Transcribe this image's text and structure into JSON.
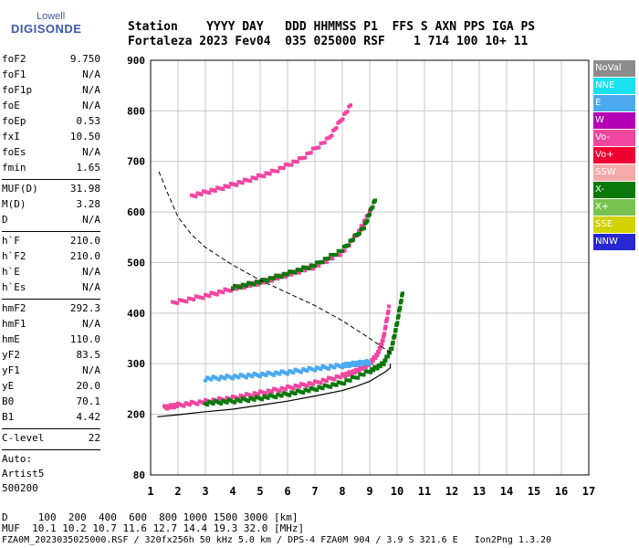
{
  "logo": {
    "top": "Lowell",
    "main": "DIGISONDE"
  },
  "header": {
    "row1": "Station    YYYY DAY   DDD HHMMSS P1  FFS S AXN PPS IGA PS",
    "row2": "Fortaleza 2023 Fev04  035 025000 RSF    1 714 100 10+ 11"
  },
  "params_group1": [
    {
      "name": "foF2",
      "value": "9.750"
    },
    {
      "name": "foF1",
      "value": "N/A"
    },
    {
      "name": "foF1p",
      "value": "N/A"
    },
    {
      "name": "foE",
      "value": "N/A"
    },
    {
      "name": "foEp",
      "value": "0.53"
    },
    {
      "name": "fxI",
      "value": "10.50"
    },
    {
      "name": "foEs",
      "value": "N/A"
    },
    {
      "name": "fmin",
      "value": "1.65"
    }
  ],
  "params_group2": [
    {
      "name": "MUF(D)",
      "value": "31.98"
    },
    {
      "name": "M(D)",
      "value": "3.28"
    },
    {
      "name": "D",
      "value": "N/A"
    }
  ],
  "params_group3": [
    {
      "name": "h`F",
      "value": "210.0"
    },
    {
      "name": "h`F2",
      "value": "210.0"
    },
    {
      "name": "h`E",
      "value": "N/A"
    },
    {
      "name": "h`Es",
      "value": "N/A"
    }
  ],
  "params_group4": [
    {
      "name": "hmF2",
      "value": "292.3"
    },
    {
      "name": "hmF1",
      "value": "N/A"
    },
    {
      "name": "hmE",
      "value": "110.0"
    },
    {
      "name": "yF2",
      "value": "83.5"
    },
    {
      "name": "yF1",
      "value": "N/A"
    },
    {
      "name": "yE",
      "value": "20.0"
    },
    {
      "name": "B0",
      "value": "70.1"
    },
    {
      "name": "B1",
      "value": "4.42"
    }
  ],
  "clevel": {
    "name": "C-level",
    "value": "22"
  },
  "auto_lines": [
    "Auto:",
    "Artist5",
    "500200"
  ],
  "legend": [
    {
      "label": "NoVal",
      "color": "#8c8c8c"
    },
    {
      "label": "NNE",
      "color": "#19e1f0"
    },
    {
      "label": "E",
      "color": "#4ba9f0"
    },
    {
      "label": "W",
      "color": "#b400b4"
    },
    {
      "label": "Vo-",
      "color": "#f046a0"
    },
    {
      "label": "Vo+",
      "color": "#f00032"
    },
    {
      "label": "SSW",
      "color": "#f5aaaa"
    },
    {
      "label": "X-",
      "color": "#0a780a"
    },
    {
      "label": "X+",
      "color": "#78c350"
    },
    {
      "label": "SSE",
      "color": "#d2d200"
    },
    {
      "label": "NNW",
      "color": "#2828d2"
    }
  ],
  "footer": {
    "line1": "D     100  200  400  600  800 1000 1500 3000 [km]",
    "line2": "MUF  10.1 10.2 10.7 11.6 12.7 14.4 19.3 32.0 [MHz]",
    "line3": "FZA0M_2023035025000.RSF / 320fx256h 50 kHz 5.0 km / DPS-4 FZA0M 904 / 3.9 S 321.6 E   Ion2Png 1.3.20"
  },
  "chart_data": {
    "type": "scatter",
    "title": "",
    "xlabel": "",
    "ylabel": "",
    "xlim": [
      1,
      17
    ],
    "ylim": [
      80,
      900
    ],
    "x_ticks": [
      1,
      2,
      3,
      4,
      5,
      6,
      7,
      8,
      9,
      10,
      11,
      12,
      13,
      14,
      15,
      16,
      17
    ],
    "y_ticks": [
      80,
      200,
      300,
      400,
      500,
      600,
      700,
      800,
      900
    ],
    "grid": true,
    "legend_position": "right",
    "traces": [
      {
        "name": "O-trace (Vo-)",
        "color": "#f046a0",
        "x": [
          1.5,
          2.0,
          3.0,
          4.0,
          5.0,
          6.0,
          7.0,
          8.0,
          8.5,
          9.0,
          9.3,
          9.5,
          9.7
        ],
        "y": [
          213,
          218,
          225,
          232,
          242,
          252,
          262,
          276,
          285,
          300,
          320,
          350,
          410
        ]
      },
      {
        "name": "X-trace (X-)",
        "color": "#0a780a",
        "x": [
          3.0,
          4.0,
          5.0,
          6.0,
          7.0,
          8.0,
          9.0,
          9.5,
          9.8,
          10.0,
          10.2
        ],
        "y": [
          222,
          226,
          232,
          240,
          250,
          262,
          285,
          300,
          330,
          380,
          440
        ]
      },
      {
        "name": "second-hop O",
        "color": "#f046a0",
        "x": [
          1.8,
          3.0,
          4.0,
          5.0,
          6.0,
          7.0,
          8.0,
          8.6,
          9.0
        ],
        "y": [
          420,
          434,
          448,
          460,
          476,
          492,
          520,
          560,
          600
        ]
      },
      {
        "name": "second-hop X",
        "color": "#0a780a",
        "x": [
          4.0,
          5.0,
          6.0,
          7.0,
          8.0,
          8.8,
          9.2
        ],
        "y": [
          450,
          462,
          478,
          495,
          525,
          570,
          625
        ]
      },
      {
        "name": "third-hop",
        "color": "#f046a0",
        "x": [
          2.5,
          3.5,
          4.5,
          5.5,
          6.5,
          7.5,
          8.3
        ],
        "y": [
          632,
          646,
          662,
          680,
          705,
          745,
          810
        ]
      },
      {
        "name": "E echoes",
        "color": "#4ba9f0",
        "x": [
          3.0,
          4.0,
          5.0,
          6.0,
          7.0,
          8.0,
          8.5,
          9.0
        ],
        "y": [
          270,
          274,
          278,
          283,
          290,
          296,
          300,
          303
        ]
      }
    ],
    "profile_line": {
      "x": [
        1.25,
        2.0,
        3.0,
        4.0,
        5.0,
        6.0,
        7.0,
        8.0,
        8.5,
        9.0,
        9.3,
        9.6,
        9.75,
        9.75
      ],
      "y": [
        195,
        199,
        205,
        210,
        218,
        226,
        236,
        247,
        255,
        265,
        275,
        285,
        292,
        300
      ]
    },
    "muf_curve": {
      "x": [
        1.3,
        1.6,
        2.0,
        2.5,
        3.0,
        4.0,
        5.0,
        6.0,
        7.0,
        8.0,
        9.0,
        9.8
      ],
      "y": [
        680,
        640,
        590,
        555,
        530,
        495,
        465,
        440,
        415,
        385,
        350,
        320
      ]
    }
  }
}
